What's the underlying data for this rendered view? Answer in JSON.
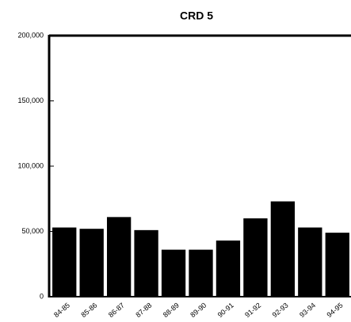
{
  "chart_data": {
    "type": "bar",
    "title": "CRD 5",
    "categories": [
      "84-85",
      "85-86",
      "86-87",
      "87-88",
      "88-89",
      "89-90",
      "90-91",
      "91-92",
      "92-93",
      "93-94",
      "94-95"
    ],
    "values": [
      53000,
      52000,
      61000,
      51000,
      36000,
      36000,
      43000,
      60000,
      73000,
      53000,
      49000
    ],
    "color": "#000000",
    "ylim": [
      0,
      200000
    ],
    "yticks": [
      0,
      {
        "value": 50000,
        "label": "50,000"
      },
      {
        "value": 100000,
        "label": "100,000"
      },
      {
        "value": 150000,
        "label": "150,000"
      },
      {
        "value": 200000,
        "label": "200,000"
      }
    ]
  }
}
